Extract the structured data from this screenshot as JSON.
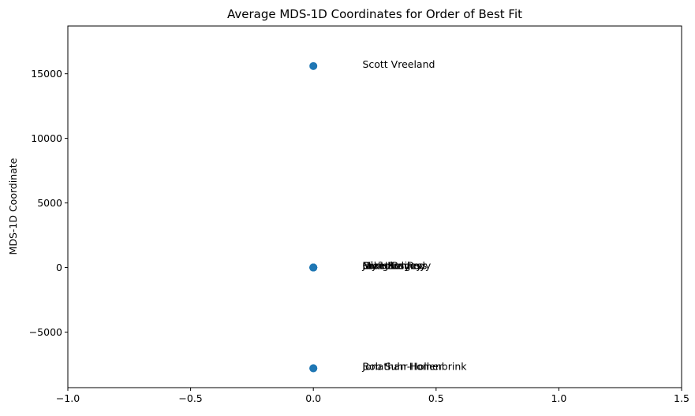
{
  "chart_data": {
    "type": "scatter",
    "title": "Average MDS-1D Coordinates for Order of Best Fit",
    "xlabel": "",
    "ylabel": "MDS-1D Coordinate",
    "xlim": [
      -1.0,
      1.5
    ],
    "ylim": [
      -9300,
      18700
    ],
    "xticks": [
      -1.0,
      -0.5,
      0.0,
      0.5,
      1.0,
      1.5
    ],
    "xtick_labels": [
      "−1.0",
      "−0.5",
      "0.0",
      "0.5",
      "1.0",
      "1.5"
    ],
    "yticks": [
      -5000,
      0,
      5000,
      10000,
      15000
    ],
    "ytick_labels": [
      "−5000",
      "0",
      "5000",
      "10000",
      "15000"
    ],
    "grid": false,
    "marker_color": "#1f77b4",
    "points": [
      {
        "x": 0,
        "y": 15600
      },
      {
        "x": 0,
        "y": 0
      },
      {
        "x": 0,
        "y": 0
      },
      {
        "x": 0,
        "y": 0
      },
      {
        "x": 0,
        "y": 0
      },
      {
        "x": 0,
        "y": 0
      },
      {
        "x": 0,
        "y": -7800
      },
      {
        "x": 0,
        "y": -7800
      }
    ],
    "annotations": [
      {
        "text": "Scott Vreeland",
        "x": 0.2,
        "y": 15750
      },
      {
        "text": "Mike Kennedy",
        "x": 0.2,
        "y": 150
      },
      {
        "text": "Jay Hardy",
        "x": 0.2,
        "y": 150
      },
      {
        "text": "Sam Burgess",
        "x": 0.2,
        "y": 150
      },
      {
        "text": "Nicholas Roy",
        "x": 0.2,
        "y": 150
      },
      {
        "text": "Craig Bailey",
        "x": 0.2,
        "y": 150
      },
      {
        "text": "Jonathan Homer",
        "x": 0.2,
        "y": -7650
      },
      {
        "text": "Bob Suhr-Hollenbrink",
        "x": 0.2,
        "y": -7650
      }
    ]
  }
}
